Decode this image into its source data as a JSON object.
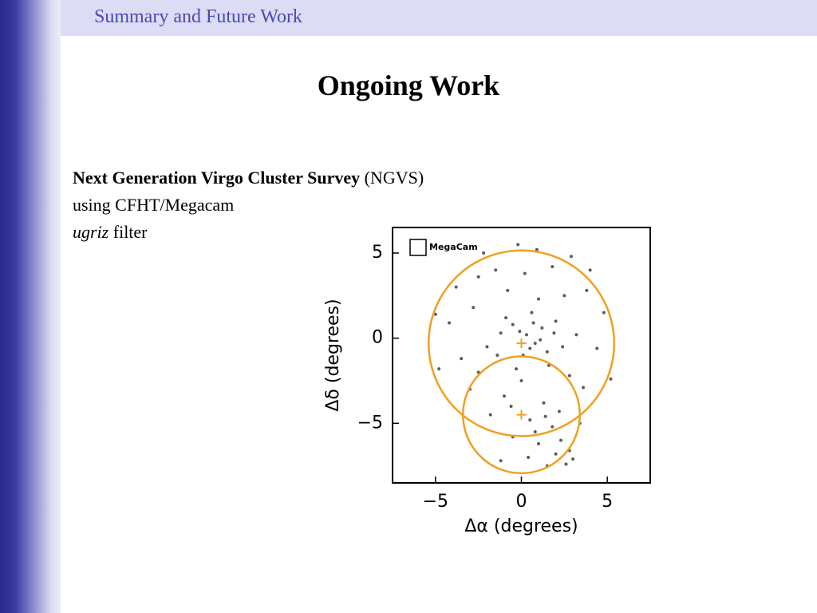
{
  "header": {
    "section": "Summary and Future Work"
  },
  "title": "Ongoing Work",
  "body": [
    [
      {
        "text": "Next Generation Virgo Cluster Survey",
        "style": "bold"
      },
      {
        "text": " (NGVS)",
        "style": "normal"
      }
    ],
    [
      {
        "text": "using CFHT/Megacam",
        "style": "normal"
      }
    ],
    [
      {
        "text": "ugriz",
        "style": "italic"
      },
      {
        "text": " filter",
        "style": "normal"
      }
    ]
  ],
  "chart_data": {
    "type": "scatter",
    "x_label": "Δα (degrees)",
    "y_label": "Δδ (degrees)",
    "legend": "MegaCam",
    "xlim": [
      -7.5,
      7.5
    ],
    "ylim": [
      -8.5,
      6.5
    ],
    "xticks": [
      {
        "value": -5,
        "label": "−5"
      },
      0,
      5
    ],
    "yticks": [
      {
        "value": -5,
        "label": "−5"
      },
      0,
      5
    ],
    "color": "#333333",
    "circle_color": "#f0a020",
    "circles": [
      {
        "center": [
          0,
          -0.3
        ],
        "radius": 5.4
      },
      {
        "center": [
          0,
          -4.5
        ],
        "radius": 3.4
      }
    ],
    "x": [
      0.3,
      0.8,
      1.2,
      -0.5,
      0.1,
      1.5,
      -1.2,
      2.0,
      -2.0,
      0.6,
      1.0,
      -0.8,
      2.5,
      -2.8,
      3.2,
      -3.5,
      0.2,
      1.8,
      -1.5,
      3.8,
      -4.2,
      4.4,
      -3.0,
      2.8,
      0.0,
      -1.0,
      1.3,
      0.5,
      1.8,
      2.3,
      2.8,
      3.0,
      1.0,
      -0.5,
      -1.8,
      2.2,
      3.4,
      -2.5,
      4.8,
      -4.8,
      0.9,
      -0.2,
      2.9,
      -2.5,
      1.6,
      -0.3,
      0.7,
      -1.4,
      2.4,
      3.6,
      -3.8,
      0.4,
      -1.2,
      1.5,
      2.6,
      -2.2,
      4.0,
      -5.0,
      5.2,
      -0.9,
      1.1,
      0.5,
      -0.1,
      1.9,
      0.8,
      1.4,
      2.0,
      -0.6
    ],
    "y": [
      0.2,
      -0.3,
      0.6,
      0.8,
      -1.0,
      -0.8,
      0.3,
      1.0,
      -0.5,
      1.5,
      2.3,
      2.8,
      2.5,
      1.8,
      0.2,
      -1.2,
      3.8,
      4.2,
      4.0,
      2.8,
      0.9,
      -0.6,
      -3.0,
      -2.2,
      -2.5,
      -3.4,
      -3.8,
      -4.8,
      -5.2,
      -6.0,
      -6.6,
      -7.1,
      -6.2,
      -5.8,
      -4.5,
      -4.3,
      -5.0,
      -2.0,
      1.5,
      -1.8,
      5.2,
      5.5,
      4.8,
      3.6,
      -1.6,
      -1.8,
      0.9,
      -1.0,
      -0.5,
      -2.9,
      3.0,
      -7.0,
      -7.2,
      -7.5,
      -7.4,
      5.0,
      4.0,
      1.4,
      -2.4,
      1.2,
      -0.1,
      -0.6,
      0.4,
      0.3,
      -5.5,
      -4.6,
      -6.8,
      -4.0
    ]
  }
}
